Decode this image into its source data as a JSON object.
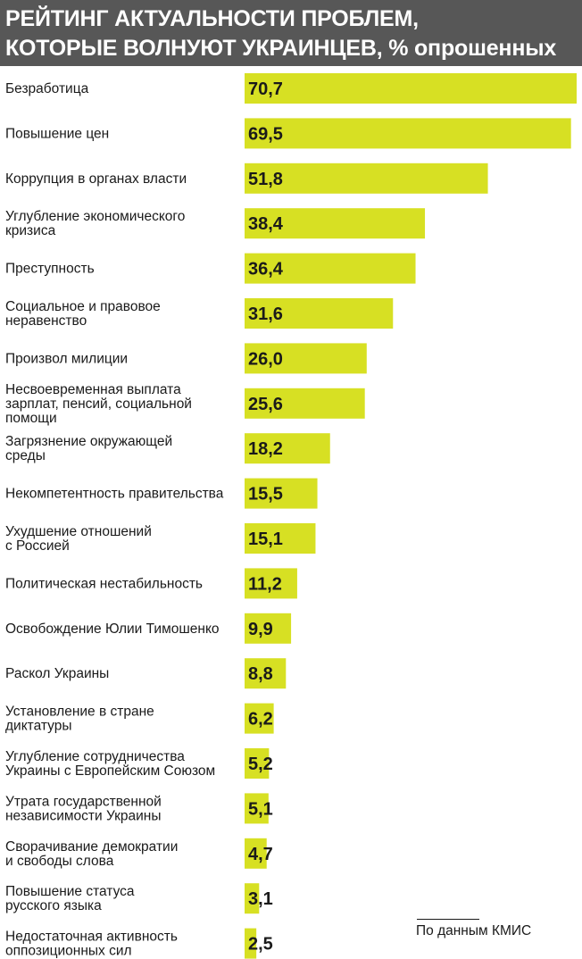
{
  "chart_data": {
    "type": "bar",
    "orientation": "horizontal",
    "title": "РЕЙТИНГ АКТУАЛЬНОСТИ ПРОБЛЕМ, КОТОРЫЕ ВОЛНУЮТ УКРАИНЦЕВ, % опрошенных",
    "title_lines": [
      "РЕЙТИНГ АКТУАЛЬНОСТИ ПРОБЛЕМ,",
      "КОТОРЫЕ ВОЛНУЮТ УКРАИНЦЕВ, % опрошенных"
    ],
    "categories": [
      "Безработица",
      "Повышение цен",
      "Коррупция в органах власти",
      "Углубление экономического кризиса",
      "Преступность",
      "Социальное и правовое неравенство",
      "Произвол милиции",
      "Несвоевременная выплата зарплат, пенсий, социальной помощи",
      "Загрязнение окружающей среды",
      "Некомпетентность правительства",
      "Ухудшение отношений с Россией",
      "Политическая нестабильность",
      "Освобождение Юлии Тимошенко",
      "Раскол Украины",
      "Установление в стране диктатуры",
      "Углубление сотрудничества Украины с Европейским Союзом",
      "Утрата государственной независимости Украины",
      "Сворачивание демократии и свободы слова",
      "Повышение статуса русского языка",
      "Недостаточная активность оппозиционных сил"
    ],
    "category_lines": [
      [
        "Безработица"
      ],
      [
        "Повышение цен"
      ],
      [
        "Коррупция в органах власти"
      ],
      [
        "Углубление экономического",
        "кризиса"
      ],
      [
        "Преступность"
      ],
      [
        "Социальное и правовое",
        "неравенство"
      ],
      [
        "Произвол милиции"
      ],
      [
        "Несвоевременная выплата",
        "зарплат, пенсий, социальной",
        "помощи"
      ],
      [
        "Загрязнение окружающей",
        "среды"
      ],
      [
        "Некомпетентность правительства"
      ],
      [
        "Ухудшение отношений",
        "с Россией"
      ],
      [
        "Политическая нестабильность"
      ],
      [
        "Освобождение Юлии Тимошенко"
      ],
      [
        "Раскол Украины"
      ],
      [
        "Установление в стране",
        "диктатуры"
      ],
      [
        "Углубление сотрудничества",
        "Украины с Европейским Союзом"
      ],
      [
        "Утрата государственной",
        "независимости Украины"
      ],
      [
        "Сворачивание демократии",
        "и свободы слова"
      ],
      [
        "Повышение статуса",
        "русского языка"
      ],
      [
        "Недостаточная активность",
        "оппозиционных сил"
      ]
    ],
    "values": [
      70.7,
      69.5,
      51.8,
      38.4,
      36.4,
      31.6,
      26.0,
      25.6,
      18.2,
      15.5,
      15.1,
      11.2,
      9.9,
      8.8,
      6.2,
      5.2,
      5.1,
      4.7,
      3.1,
      2.5
    ],
    "value_labels": [
      "70,7",
      "69,5",
      "51,8",
      "38,4",
      "36,4",
      "31,6",
      "26,0",
      "25,6",
      "18,2",
      "15,5",
      "15,1",
      "11,2",
      "9,9",
      "8,8",
      "6,2",
      "5,2",
      "5,1",
      "4,7",
      "3,1",
      "2,5"
    ],
    "xlabel": "",
    "ylabel": "",
    "xlim": [
      0,
      70.7
    ],
    "grid": false,
    "legend": "none",
    "colors": {
      "bar": "#d7e023",
      "title_background": "#575757",
      "title_text": "#ffffff",
      "text": "#1a1a1a"
    }
  },
  "source": "По данным КМИС"
}
